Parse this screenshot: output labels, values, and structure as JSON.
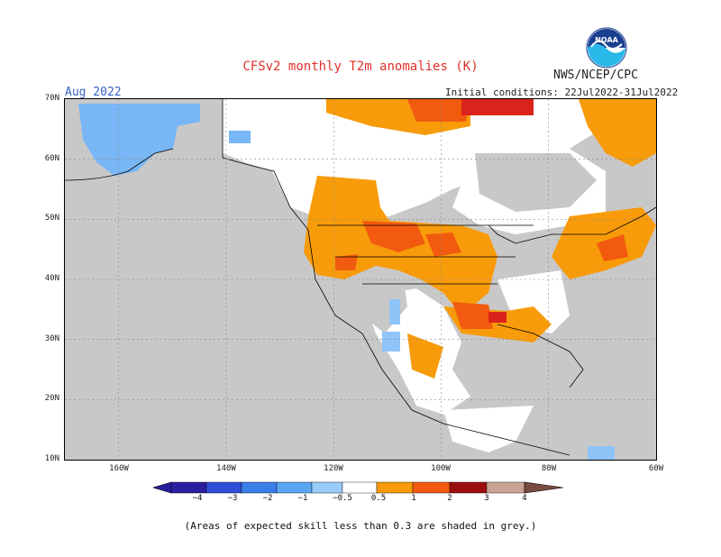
{
  "header": {
    "title": "CFSv2 monthly T2m anomalies (K)",
    "agency": "NWS/NCEP/CPC",
    "month": "Aug 2022",
    "initial_conditions": "Initial conditions: 22Jul2022-31Jul2022"
  },
  "logo": {
    "text": "NOAA",
    "icon": "noaa-logo"
  },
  "axes": {
    "lat_labels": [
      "70N",
      "60N",
      "50N",
      "40N",
      "30N",
      "20N",
      "10N"
    ],
    "lon_labels": [
      "160W",
      "140W",
      "120W",
      "100W",
      "80W",
      "60W"
    ],
    "lat_range": [
      10,
      70
    ],
    "lon_range": [
      -170,
      -60
    ]
  },
  "colorbar": {
    "labels": [
      "−4",
      "−3",
      "−2",
      "−1",
      "−0.5",
      "0.5",
      "1",
      "2",
      "3",
      "4"
    ],
    "colors": [
      "#2a1f9e",
      "#2f4fd6",
      "#3a7ee8",
      "#5aa6f2",
      "#99ccfa",
      "#ffffff",
      "#f89b0a",
      "#f25a0f",
      "#d9231b",
      "#9c0f0f",
      "#c8a292",
      "#7a4a40"
    ]
  },
  "legend_colors": {
    "land_low_skill": "#c8c8c8",
    "neutral": "#ffffff",
    "warm_1": "#f89b0a",
    "warm_2": "#f25a0f",
    "warm_3": "#d9231b",
    "cool_1": "#99ccfa",
    "cool_2": "#5aa6f2"
  },
  "footnote": "(Areas of expected skill less than 0.3 are shaded in grey.)"
}
